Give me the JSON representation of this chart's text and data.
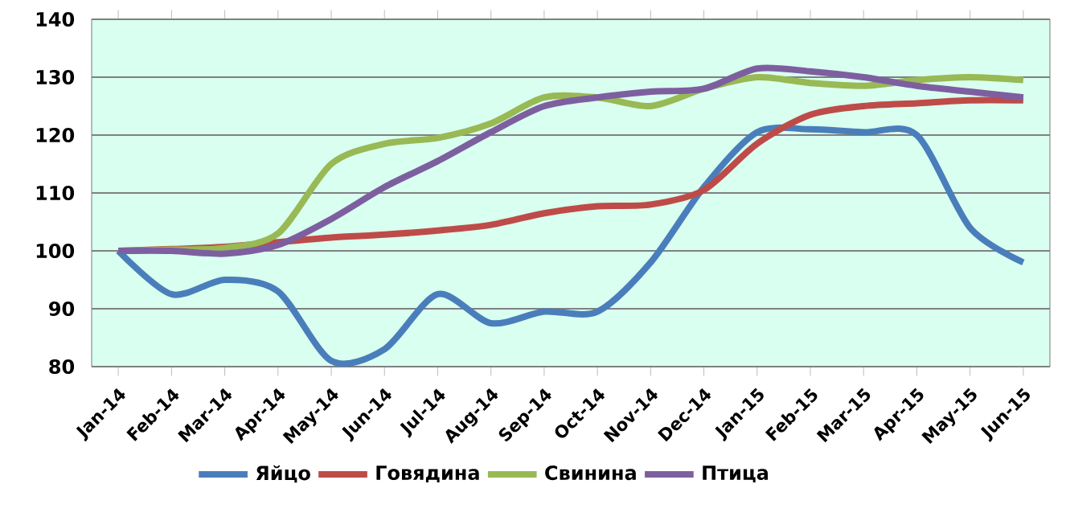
{
  "chart_data": {
    "type": "line",
    "categories": [
      "Jan-14",
      "Feb-14",
      "Mar-14",
      "Apr-14",
      "May-14",
      "Jun-14",
      "Jul-14",
      "Aug-14",
      "Sep-14",
      "Oct-14",
      "Nov-14",
      "Dec-14",
      "Jan-15",
      "Feb-15",
      "Mar-15",
      "Apr-15",
      "May-15",
      "Jun-15"
    ],
    "series": [
      {
        "name": "Яйцо",
        "color": "#4a7ebb",
        "values": [
          100,
          92.5,
          95,
          93,
          81,
          83,
          92.5,
          87.5,
          89.5,
          89.5,
          98,
          111,
          120.5,
          121,
          120.5,
          120,
          104,
          98
        ]
      },
      {
        "name": "Говядина",
        "color": "#be4b48",
        "values": [
          100,
          100.3,
          100.7,
          101.5,
          102.3,
          102.8,
          103.5,
          104.5,
          106.5,
          107.7,
          108,
          110.5,
          118.5,
          123.5,
          125,
          125.5,
          126,
          126
        ]
      },
      {
        "name": "Свинина",
        "color": "#98b954",
        "values": [
          100,
          100.2,
          100.5,
          103,
          115,
          118.5,
          119.5,
          122,
          126.5,
          126.5,
          125,
          128,
          130,
          129,
          128.5,
          129.5,
          130,
          129.5
        ]
      },
      {
        "name": "Птица",
        "color": "#7d5fa0",
        "values": [
          100,
          100,
          99.5,
          101,
          105.5,
          111,
          115.5,
          120.5,
          125,
          126.5,
          127.5,
          128,
          131.5,
          131,
          130,
          128.5,
          127.5,
          126.5
        ]
      }
    ],
    "ylim": [
      80,
      140
    ],
    "yticks": [
      80,
      90,
      100,
      110,
      120,
      130,
      140
    ],
    "grid": "y",
    "legend": "bottom"
  }
}
